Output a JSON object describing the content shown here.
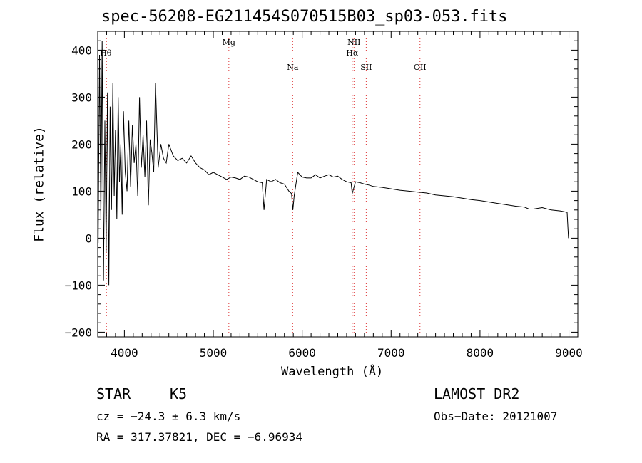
{
  "chart_data": {
    "type": "line",
    "title": "spec-56208-EG211454S070515B03_sp03-053.fits",
    "xlabel": "Wavelength (Å)",
    "ylabel": "Flux (relative)",
    "xlim": [
      3700,
      9100
    ],
    "ylim": [
      -210,
      440
    ],
    "xticks": [
      4000,
      5000,
      6000,
      7000,
      8000,
      9000
    ],
    "yticks": [
      -200,
      -100,
      0,
      100,
      200,
      300,
      400
    ],
    "lines": [
      {
        "name": "Hθ",
        "wavelength": 3798
      },
      {
        "name": "Mg",
        "wavelength": 5175
      },
      {
        "name": "Na",
        "wavelength": 5893
      },
      {
        "name": "NII",
        "wavelength": 6583
      },
      {
        "name": "Hα",
        "wavelength": 6563
      },
      {
        "name": "SII",
        "wavelength": 6720
      },
      {
        "name": "OII",
        "wavelength": 7325
      }
    ],
    "series": [
      {
        "name": "flux",
        "x": [
          3705,
          3720,
          3735,
          3750,
          3765,
          3780,
          3795,
          3810,
          3825,
          3840,
          3855,
          3870,
          3885,
          3900,
          3915,
          3930,
          3945,
          3960,
          3975,
          3990,
          4010,
          4030,
          4050,
          4070,
          4090,
          4110,
          4130,
          4150,
          4170,
          4190,
          4210,
          4230,
          4250,
          4270,
          4290,
          4310,
          4330,
          4350,
          4380,
          4410,
          4440,
          4470,
          4500,
          4550,
          4600,
          4650,
          4700,
          4750,
          4800,
          4850,
          4900,
          4950,
          5000,
          5050,
          5100,
          5150,
          5200,
          5250,
          5300,
          5350,
          5400,
          5450,
          5500,
          5550,
          5570,
          5600,
          5650,
          5700,
          5750,
          5800,
          5850,
          5880,
          5895,
          5910,
          5950,
          6000,
          6050,
          6100,
          6150,
          6200,
          6250,
          6300,
          6350,
          6400,
          6450,
          6500,
          6550,
          6563,
          6600,
          6650,
          6700,
          6750,
          6800,
          6900,
          7000,
          7100,
          7200,
          7300,
          7400,
          7500,
          7600,
          7700,
          7800,
          7900,
          8000,
          8100,
          8200,
          8300,
          8400,
          8500,
          8550,
          8600,
          8700,
          8800,
          8900,
          8980,
          8995
        ],
        "values": [
          -10,
          390,
          40,
          420,
          -90,
          250,
          -30,
          310,
          -100,
          280,
          60,
          330,
          90,
          230,
          40,
          300,
          120,
          200,
          50,
          270,
          140,
          100,
          250,
          110,
          240,
          160,
          200,
          90,
          300,
          150,
          220,
          130,
          250,
          70,
          210,
          180,
          140,
          330,
          150,
          200,
          170,
          160,
          200,
          175,
          165,
          170,
          160,
          175,
          160,
          150,
          145,
          135,
          140,
          135,
          130,
          125,
          130,
          128,
          125,
          132,
          130,
          125,
          120,
          118,
          60,
          125,
          120,
          125,
          118,
          115,
          100,
          95,
          60,
          90,
          140,
          130,
          128,
          128,
          135,
          128,
          132,
          135,
          130,
          132,
          125,
          120,
          118,
          95,
          120,
          118,
          115,
          113,
          110,
          108,
          105,
          102,
          100,
          98,
          96,
          92,
          90,
          88,
          85,
          82,
          80,
          77,
          74,
          71,
          68,
          66,
          62,
          62,
          65,
          60,
          58,
          55,
          0
        ]
      }
    ]
  },
  "annotations": {
    "object_type": "STAR",
    "subclass": "K5",
    "survey": "LAMOST DR2",
    "cz": "cz = −24.3 ± 6.3 km/s",
    "obs_date": "Obs−Date: 20121007",
    "coords": "RA = 317.37821, DEC =  −6.96934"
  }
}
